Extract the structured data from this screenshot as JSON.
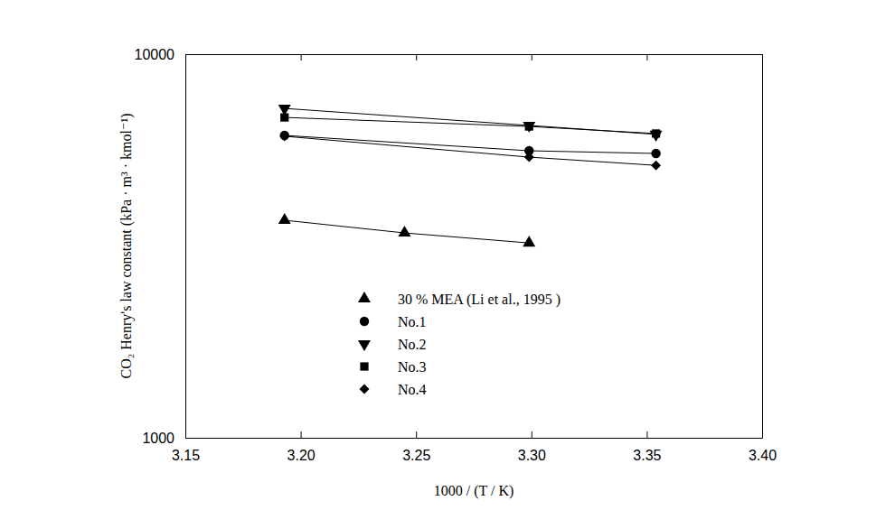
{
  "chart_data": {
    "type": "line",
    "x_label": "1000 / (T / K)",
    "y_label": "CO₂ Henry's law constant (kPa · m³ · kmol⁻¹)",
    "log": "y",
    "grid": false,
    "legend": "lower left",
    "xlim": [
      3.15,
      3.4
    ],
    "xticks": [
      3.15,
      {
        "value": 3.2,
        "label": "3.20"
      },
      3.25,
      {
        "value": 3.3,
        "label": "3.30"
      },
      3.35,
      {
        "value": 3.4,
        "label": "3.40"
      }
    ],
    "ylim": [
      1000,
      10000
    ],
    "yticks": [
      1000,
      10000
    ],
    "series": [
      {
        "name": "30 % MEA (Li et al., 1995 )",
        "color": "#000000",
        "marker": "triangle-up",
        "line_style": "solid",
        "x": [
          3.193,
          3.245,
          3.299
        ],
        "values": [
          3690,
          3420,
          3220
        ]
      },
      {
        "name": "No.1",
        "color": "#000000",
        "marker": "circle",
        "line_style": "solid",
        "x": [
          3.193,
          3.299,
          3.354
        ],
        "values": [
          6140,
          5600,
          5510
        ]
      },
      {
        "name": "No.2",
        "color": "#000000",
        "marker": "triangle-down",
        "line_style": "solid",
        "x": [
          3.193,
          3.299,
          3.354
        ],
        "values": [
          7220,
          6520,
          6180
        ]
      },
      {
        "name": "No.3",
        "color": "#000000",
        "marker": "square",
        "line_style": "solid",
        "x": [
          3.193,
          3.299,
          3.354
        ],
        "values": [
          6840,
          6480,
          6210
        ]
      },
      {
        "name": "No.4",
        "color": "#000000",
        "marker": "diamond",
        "line_style": "solid",
        "x": [
          3.193,
          3.299,
          3.354
        ],
        "values": [
          6110,
          5390,
          5130
        ]
      }
    ]
  }
}
